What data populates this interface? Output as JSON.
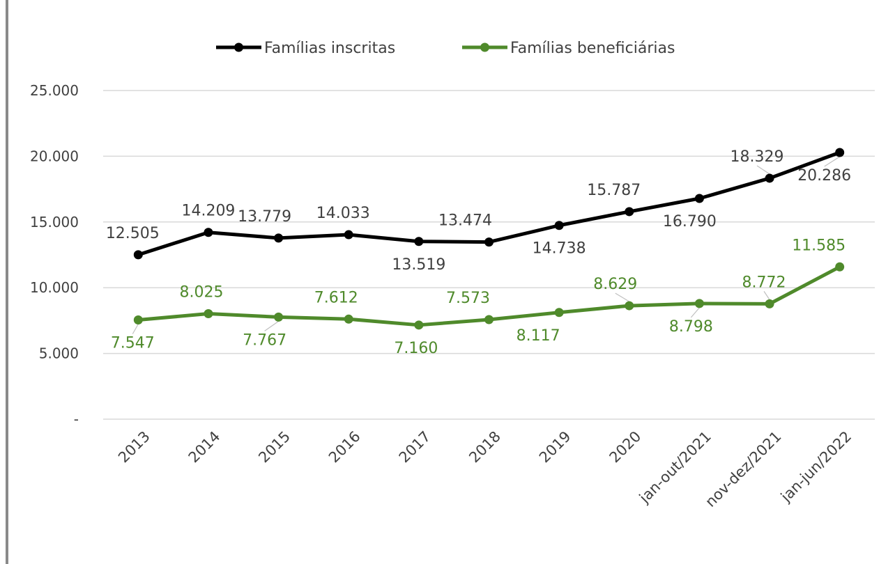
{
  "chart_data": {
    "type": "line",
    "title": "",
    "xlabel": "",
    "ylabel": "",
    "categories": [
      "2013",
      "2014",
      "2015",
      "2016",
      "2017",
      "2018",
      "2019",
      "2020",
      "jan-out/2021",
      "nov-dez/2021",
      "jan-jun/2022"
    ],
    "ylim": [
      0,
      25000
    ],
    "yticks": [
      {
        "value": 0,
        "label": "-"
      },
      {
        "value": 5000,
        "label": "5.000"
      },
      {
        "value": 10000,
        "label": "10.000"
      },
      {
        "value": 15000,
        "label": "15.000"
      },
      {
        "value": 20000,
        "label": "20.000"
      },
      {
        "value": 25000,
        "label": "25.000"
      }
    ],
    "grid": true,
    "legend_position": "top",
    "series": [
      {
        "name": "Famílias inscritas",
        "color": "#000000",
        "values": [
          12505,
          14209,
          13779,
          14033,
          13519,
          13474,
          14738,
          15787,
          16790,
          18329,
          20286
        ],
        "labels": [
          "12.505",
          "14.209",
          "13.779",
          "14.033",
          "13.519",
          "13.474",
          "14.738",
          "15.787",
          "16.790",
          "18.329",
          "20.286"
        ]
      },
      {
        "name": "Famílias beneficiárias",
        "color": "#4f8a2b",
        "values": [
          7547,
          8025,
          7767,
          7612,
          7160,
          7573,
          8117,
          8629,
          8798,
          8772,
          11585
        ],
        "labels": [
          "7.547",
          "8.025",
          "7.767",
          "7.612",
          "7.160",
          "7.573",
          "8.117",
          "8.629",
          "8.798",
          "8.772",
          "11.585"
        ]
      }
    ]
  }
}
